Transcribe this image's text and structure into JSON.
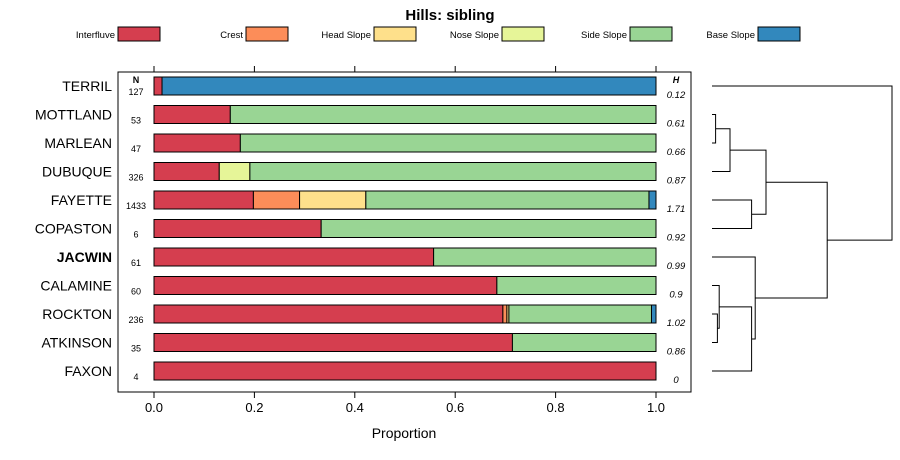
{
  "chart_data": {
    "type": "bar",
    "stacked": true,
    "orientation": "horizontal",
    "title": "Hills: sibling",
    "xlabel": "Proportion",
    "ylabel": "",
    "xlim": [
      0,
      1
    ],
    "xticks": [
      "0.0",
      "0.2",
      "0.4",
      "0.6",
      "0.8",
      "1.0"
    ],
    "n_header": "N",
    "h_header": "H",
    "legend_position": "top",
    "legend": [
      {
        "name": "Interfluve",
        "color": "#d53e4f"
      },
      {
        "name": "Crest",
        "color": "#fc8d59"
      },
      {
        "name": "Head Slope",
        "color": "#fee08b"
      },
      {
        "name": "Nose Slope",
        "color": "#e6f598"
      },
      {
        "name": "Side Slope",
        "color": "#99d594"
      },
      {
        "name": "Base Slope",
        "color": "#3288bd"
      }
    ],
    "categories": [
      "TERRIL",
      "MOTTLAND",
      "MARLEAN",
      "DUBUQUE",
      "FAYETTE",
      "COPASTON",
      "JACWIN",
      "CALAMINE",
      "ROCKTON",
      "ATKINSON",
      "FAXON"
    ],
    "highlight": "JACWIN",
    "n": [
      "127",
      "53",
      "47",
      "326",
      "1433",
      "6",
      "61",
      "60",
      "236",
      "35",
      "4"
    ],
    "h": [
      "0.12",
      "0.61",
      "0.66",
      "0.87",
      "1.71",
      "0.92",
      "0.99",
      "0.9",
      "1.02",
      "0.86",
      "0"
    ],
    "series": [
      {
        "name": "Interfluve",
        "values": [
          0.016,
          0.152,
          0.172,
          0.13,
          0.198,
          0.333,
          0.557,
          0.683,
          0.695,
          0.714,
          1.0
        ]
      },
      {
        "name": "Crest",
        "values": [
          0,
          0,
          0,
          0,
          0.092,
          0,
          0,
          0,
          0.008,
          0,
          0
        ]
      },
      {
        "name": "Head Slope",
        "values": [
          0,
          0,
          0,
          0,
          0.132,
          0,
          0,
          0,
          0.004,
          0,
          0
        ]
      },
      {
        "name": "Nose Slope",
        "values": [
          0,
          0,
          0,
          0.061,
          0,
          0,
          0,
          0,
          0,
          0,
          0
        ]
      },
      {
        "name": "Side Slope",
        "values": [
          0,
          0.848,
          0.828,
          0.809,
          0.564,
          0.667,
          0.443,
          0.317,
          0.284,
          0.286,
          0
        ]
      },
      {
        "name": "Base Slope",
        "values": [
          0.984,
          0,
          0,
          0,
          0.014,
          0,
          0,
          0,
          0.009,
          0,
          0
        ]
      }
    ],
    "dendrogram": {
      "description": "hierarchical clustering of the series",
      "merges": [
        [
          "MOTTLAND",
          "MARLEAN",
          0.02
        ],
        [
          "g1",
          "DUBUQUE",
          0.1
        ],
        [
          "FAYETTE",
          "COPASTON",
          0.22
        ],
        [
          "g2",
          "g3",
          0.3
        ],
        [
          "ROCKTON",
          "ATKINSON",
          0.03
        ],
        [
          "CALAMINE",
          "g5",
          0.04
        ],
        [
          "g6",
          "FAXON",
          0.22
        ],
        [
          "JACWIN",
          "g7",
          0.24
        ],
        [
          "g4",
          "g8",
          0.64
        ],
        [
          "TERRIL",
          "g9",
          1.0
        ]
      ]
    }
  }
}
